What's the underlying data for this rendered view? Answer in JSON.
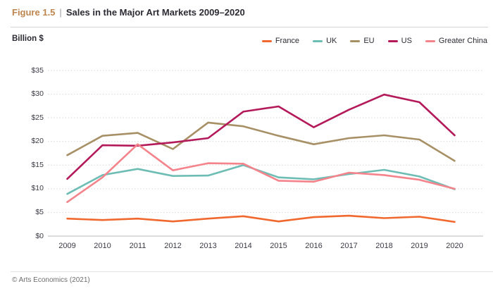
{
  "header": {
    "figure_label": "Figure 1.5",
    "separator": "|",
    "title": "Sales in the Major Art Markets 2009–2020"
  },
  "footer": {
    "credit": "© Arts Economics (2021)"
  },
  "colors": {
    "accent": "#BE854F",
    "text_dark": "#2B2B33",
    "axis_text": "#3A3A44",
    "grid": "#D8D8D8",
    "baseline": "#C6C6C6"
  },
  "chart_data": {
    "type": "line",
    "title": "Sales in the Major Art Markets 2009–2020",
    "unit": "Billion $",
    "categories": [
      "2009",
      "2010",
      "2011",
      "2012",
      "2013",
      "2014",
      "2015",
      "2016",
      "2017",
      "2018",
      "2019",
      "2020"
    ],
    "series": [
      {
        "name": "France",
        "color": "#F1682E",
        "values": [
          3.7,
          3.4,
          3.7,
          3.1,
          3.7,
          4.2,
          3.1,
          4.0,
          4.3,
          3.8,
          4.1,
          3.0
        ]
      },
      {
        "name": "UK",
        "color": "#6EBDB4",
        "values": [
          8.9,
          12.9,
          14.2,
          12.7,
          12.8,
          15.0,
          12.4,
          12.0,
          13.1,
          14.0,
          12.6,
          9.9
        ]
      },
      {
        "name": "EU",
        "color": "#A79066",
        "values": [
          17.1,
          21.2,
          21.8,
          18.4,
          24.0,
          23.2,
          21.2,
          19.4,
          20.7,
          21.3,
          20.4,
          15.9
        ]
      },
      {
        "name": "US",
        "color": "#B41A5A",
        "values": [
          12.1,
          19.2,
          19.1,
          19.8,
          20.7,
          26.3,
          27.4,
          23.0,
          26.7,
          29.9,
          28.3,
          21.3
        ]
      },
      {
        "name": "Greater China",
        "color": "#F4838C",
        "values": [
          7.2,
          12.4,
          19.4,
          13.9,
          15.4,
          15.3,
          11.7,
          11.5,
          13.4,
          12.9,
          11.9,
          10.0
        ]
      }
    ],
    "ylim": [
      0,
      35
    ],
    "y_ticks": [
      0,
      5,
      10,
      15,
      20,
      25,
      30,
      35
    ],
    "y_tick_labels": [
      "$0",
      "$5",
      "$10",
      "$15",
      "$20",
      "$25",
      "$30",
      "$35"
    ],
    "grid": "horizontal dotted gridlines, no vertical axis line, solid $0 baseline",
    "legend_position": "top-right"
  }
}
